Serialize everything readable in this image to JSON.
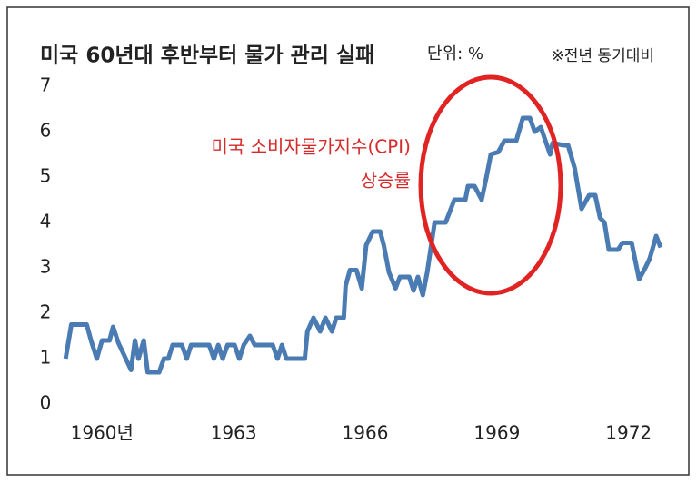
{
  "chart_data": {
    "type": "line",
    "title": "미국 60년대 후반부터 물가 관리 실패",
    "subtitle": "단위: %",
    "note": "※전년 동기대비",
    "annotation": [
      "미국 소비자물가지수(CPI)",
      "상승률"
    ],
    "x": [
      1959.17,
      1959.3,
      1959.65,
      1959.75,
      1959.88,
      1960.0,
      1960.17,
      1960.25,
      1960.37,
      1960.54,
      1960.66,
      1960.75,
      1960.83,
      1960.95,
      1961.04,
      1961.3,
      1961.41,
      1961.51,
      1961.61,
      1961.82,
      1961.93,
      1962.03,
      1962.44,
      1962.55,
      1962.65,
      1962.75,
      1962.86,
      1963.02,
      1963.13,
      1963.23,
      1963.37,
      1963.48,
      1963.89,
      1964.0,
      1964.1,
      1964.2,
      1964.31,
      1964.62,
      1964.68,
      1964.82,
      1964.97,
      1965.09,
      1965.24,
      1965.34,
      1965.51,
      1965.55,
      1965.65,
      1965.8,
      1965.92,
      1966.02,
      1966.17,
      1966.34,
      1966.42,
      1966.54,
      1966.69,
      1966.79,
      1967.0,
      1967.1,
      1967.2,
      1967.31,
      1967.41,
      1967.58,
      1967.83,
      1968.03,
      1968.28,
      1968.34,
      1968.49,
      1968.65,
      1968.76,
      1968.86,
      1969.03,
      1969.17,
      1969.44,
      1969.59,
      1969.75,
      1969.86,
      1970.0,
      1970.21,
      1970.27,
      1970.52,
      1970.62,
      1970.77,
      1970.93,
      1971.1,
      1971.24,
      1971.35,
      1971.45,
      1971.55,
      1971.76,
      1971.86,
      1972.07,
      1972.24,
      1972.38,
      1972.48,
      1972.63,
      1972.73
    ],
    "series": [
      {
        "name": "미국 소비자물가지수(CPI) 상승률",
        "color": "#4a7bb3",
        "values": [
          1.0,
          1.75,
          1.75,
          1.4,
          1.0,
          1.4,
          1.4,
          1.7,
          1.35,
          1.0,
          0.75,
          1.4,
          1.0,
          1.4,
          0.7,
          0.7,
          1.0,
          1.0,
          1.3,
          1.3,
          1.0,
          1.3,
          1.3,
          1.0,
          1.3,
          1.0,
          1.3,
          1.3,
          1.0,
          1.3,
          1.5,
          1.3,
          1.3,
          1.0,
          1.3,
          1.0,
          1.0,
          1.0,
          1.6,
          1.9,
          1.6,
          1.9,
          1.6,
          1.9,
          1.9,
          2.6,
          2.95,
          2.95,
          2.55,
          3.5,
          3.8,
          3.8,
          3.5,
          2.9,
          2.55,
          2.8,
          2.8,
          2.5,
          2.8,
          2.4,
          2.9,
          4.0,
          4.0,
          4.5,
          4.5,
          4.8,
          4.8,
          4.5,
          5.0,
          5.5,
          5.55,
          5.8,
          5.8,
          6.3,
          6.3,
          6.0,
          6.1,
          5.5,
          5.75,
          5.7,
          5.7,
          5.2,
          4.3,
          4.6,
          4.6,
          4.1,
          4.0,
          3.4,
          3.4,
          3.55,
          3.55,
          2.75,
          3.0,
          3.2,
          3.7,
          3.45
        ]
      }
    ],
    "xlim": [
      1959.0,
      1973.0
    ],
    "xticks": [
      {
        "value": 1960,
        "label": "1960년"
      },
      1963,
      1966,
      1969,
      1972
    ],
    "ylim": [
      0,
      7
    ],
    "yticks": [
      0,
      1,
      2,
      3,
      4,
      5,
      6,
      7
    ],
    "grid": false
  }
}
